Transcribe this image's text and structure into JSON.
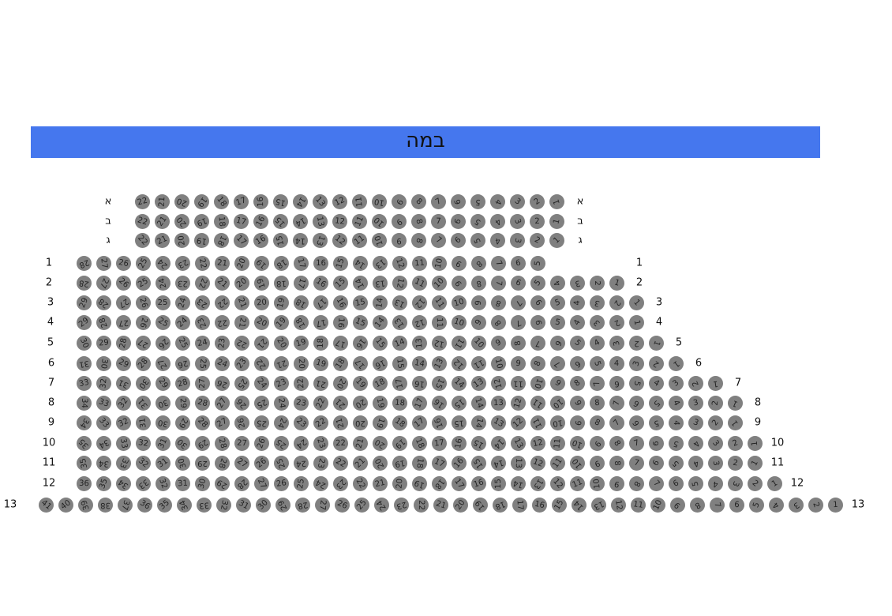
{
  "stage": {
    "label": "במה",
    "color": "#4577ee"
  },
  "seat_color": "#808080",
  "rows": [
    {
      "label": "א",
      "seats_from": 22,
      "seats_to": 1
    },
    {
      "label": "ב",
      "seats_from": 22,
      "seats_to": 1
    },
    {
      "label": "ג",
      "seats_from": 22,
      "seats_to": 1
    },
    {
      "label": "1",
      "seats_from": 28,
      "seats_to": 5
    },
    {
      "label": "2",
      "seats_from": 28,
      "seats_to": 1
    },
    {
      "label": "3",
      "seats_from": 29,
      "seats_to": 1
    },
    {
      "label": "4",
      "seats_from": 29,
      "seats_to": 1
    },
    {
      "label": "5",
      "seats_from": 30,
      "seats_to": 1
    },
    {
      "label": "6",
      "seats_from": 31,
      "seats_to": 1
    },
    {
      "label": "7",
      "seats_from": 33,
      "seats_to": 1
    },
    {
      "label": "8",
      "seats_from": 34,
      "seats_to": 1
    },
    {
      "label": "9",
      "seats_from": 34,
      "seats_to": 1
    },
    {
      "label": "10",
      "seats_from": 35,
      "seats_to": 1
    },
    {
      "label": "11",
      "seats_from": 35,
      "seats_to": 1
    },
    {
      "label": "12",
      "seats_from": 36,
      "seats_to": 1
    },
    {
      "label": "13",
      "seats_from": 41,
      "seats_to": 1
    }
  ]
}
